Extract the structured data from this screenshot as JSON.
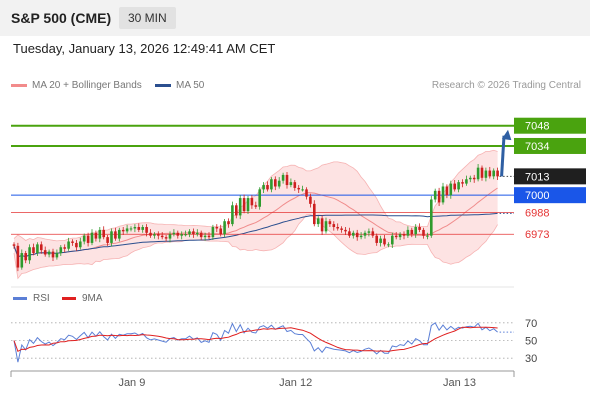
{
  "header": {
    "instrument": "S&P 500 (CME)",
    "timeframe": "30 MIN"
  },
  "datetime": "Tuesday, January 13, 2026 12:49:41 AM CET",
  "legend": [
    {
      "label": "MA 20 + Bollinger Bands",
      "color": "#f28b8b"
    },
    {
      "label": "MA 50",
      "color": "#2b4f8f"
    }
  ],
  "credit": "Research © 2026 Trading Central",
  "rsi_legend": [
    {
      "label": "RSI",
      "color": "#5b7fd6"
    },
    {
      "label": "9MA",
      "color": "#e02020"
    }
  ],
  "colors": {
    "up": "#2e9b2e",
    "down": "#cc1f1f",
    "target": "#4aa30f",
    "pivot": "#1a56e8",
    "support": "#e53535",
    "arrow": "#2f5fa3"
  },
  "chart_data": {
    "type": "candlestick",
    "price_axis": {
      "min": 6940,
      "max": 7063
    },
    "x_axis": {
      "ticks": [
        {
          "label": "Jan 9",
          "bar": 31
        },
        {
          "label": "Jan 12",
          "bar": 73
        },
        {
          "label": "Jan 13",
          "bar": 115
        }
      ],
      "bar_count": 125
    },
    "levels": [
      {
        "value": 7048,
        "label": "7048",
        "kind": "target"
      },
      {
        "value": 7034,
        "label": "7034",
        "kind": "target"
      },
      {
        "value": 7013,
        "label": "7013",
        "kind": "last"
      },
      {
        "value": 7000,
        "label": "7000",
        "kind": "pivot"
      },
      {
        "value": 6988,
        "label": "6988",
        "kind": "support"
      },
      {
        "value": 6973,
        "label": "6973",
        "kind": "support"
      }
    ],
    "candles": [
      [
        6966,
        6965
      ],
      [
        6965,
        6950
      ],
      [
        6950,
        6960
      ],
      [
        6960,
        6955
      ],
      [
        6955,
        6964
      ],
      [
        6964,
        6960
      ],
      [
        6960,
        6966
      ],
      [
        6966,
        6962
      ],
      [
        6962,
        6959
      ],
      [
        6959,
        6961
      ],
      [
        6961,
        6957
      ],
      [
        6957,
        6960
      ],
      [
        6960,
        6964
      ],
      [
        6964,
        6963
      ],
      [
        6963,
        6968
      ],
      [
        6968,
        6967
      ],
      [
        6967,
        6964
      ],
      [
        6964,
        6968
      ],
      [
        6968,
        6972
      ],
      [
        6972,
        6967
      ],
      [
        6967,
        6974
      ],
      [
        6974,
        6970
      ],
      [
        6970,
        6976
      ],
      [
        6976,
        6971
      ],
      [
        6971,
        6967
      ],
      [
        6967,
        6975
      ],
      [
        6975,
        6970
      ],
      [
        6970,
        6976
      ],
      [
        6976,
        6975
      ],
      [
        6975,
        6977
      ],
      [
        6977,
        6977
      ],
      [
        6977,
        6978
      ],
      [
        6978,
        6976
      ],
      [
        6976,
        6978
      ],
      [
        6978,
        6974
      ],
      [
        6974,
        6972
      ],
      [
        6972,
        6973
      ],
      [
        6973,
        6972
      ],
      [
        6972,
        6971
      ],
      [
        6971,
        6970
      ],
      [
        6970,
        6973
      ],
      [
        6973,
        6974
      ],
      [
        6974,
        6972
      ],
      [
        6972,
        6973
      ],
      [
        6973,
        6973
      ],
      [
        6973,
        6975
      ],
      [
        6975,
        6973
      ],
      [
        6973,
        6974
      ],
      [
        6974,
        6971
      ],
      [
        6971,
        6972
      ],
      [
        6972,
        6971
      ],
      [
        6971,
        6978
      ],
      [
        6978,
        6977
      ],
      [
        6977,
        6973
      ],
      [
        6973,
        6982
      ],
      [
        6982,
        6980
      ],
      [
        6980,
        6993
      ],
      [
        6993,
        6986
      ],
      [
        6986,
        6998
      ],
      [
        6998,
        6989
      ],
      [
        6989,
        6998
      ],
      [
        6998,
        6993
      ],
      [
        6993,
        6992
      ],
      [
        6992,
        7004
      ],
      [
        7004,
        7007
      ],
      [
        7007,
        7004
      ],
      [
        7004,
        7011
      ],
      [
        7011,
        7006
      ],
      [
        7006,
        7010
      ],
      [
        7010,
        7014
      ],
      [
        7014,
        7007
      ],
      [
        7007,
        7009
      ],
      [
        7009,
        7005
      ],
      [
        7005,
        7004
      ],
      [
        7004,
        7004
      ],
      [
        7004,
        6999
      ],
      [
        6999,
        6994
      ],
      [
        6994,
        6980
      ],
      [
        6980,
        6984
      ],
      [
        6984,
        6975
      ],
      [
        6975,
        6982
      ],
      [
        6982,
        6980
      ],
      [
        6980,
        6978
      ],
      [
        6978,
        6977
      ],
      [
        6977,
        6976
      ],
      [
        6976,
        6975
      ],
      [
        6975,
        6972
      ],
      [
        6972,
        6974
      ],
      [
        6974,
        6971
      ],
      [
        6971,
        6972
      ],
      [
        6972,
        6974
      ],
      [
        6974,
        6975
      ],
      [
        6975,
        6972
      ],
      [
        6972,
        6967
      ],
      [
        6967,
        6970
      ],
      [
        6970,
        6966
      ],
      [
        6966,
        6966
      ],
      [
        6966,
        6972
      ],
      [
        6972,
        6971
      ],
      [
        6971,
        6973
      ],
      [
        6973,
        6972
      ],
      [
        6972,
        6976
      ],
      [
        6976,
        6973
      ],
      [
        6973,
        6978
      ],
      [
        6978,
        6976
      ],
      [
        6976,
        6972
      ],
      [
        6972,
        6972
      ],
      [
        6972,
        6997
      ],
      [
        6997,
        7003
      ],
      [
        7003,
        6995
      ],
      [
        6995,
        7006
      ],
      [
        7006,
        7000
      ],
      [
        7000,
        7008
      ],
      [
        7008,
        7004
      ],
      [
        7004,
        7009
      ],
      [
        7009,
        7008
      ],
      [
        7008,
        7011
      ],
      [
        7011,
        7012
      ],
      [
        7012,
        7011
      ],
      [
        7011,
        7019
      ],
      [
        7019,
        7012
      ],
      [
        7012,
        7017
      ],
      [
        7017,
        7013
      ],
      [
        7013,
        7017
      ],
      [
        7017,
        7013
      ]
    ],
    "rsi": {
      "min": 0,
      "max": 100,
      "levels": [
        70,
        50,
        30
      ],
      "ticks": [
        "70",
        "50",
        "30"
      ]
    }
  }
}
